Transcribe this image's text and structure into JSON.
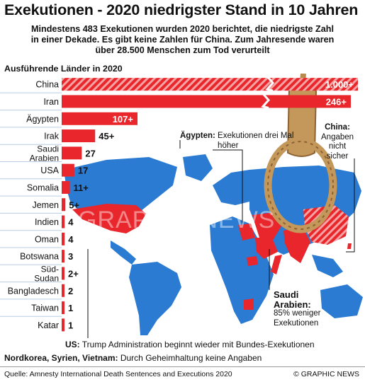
{
  "header": {
    "title": "Exekutionen - 2020 niedrigster Stand in 10 Jahren",
    "subtitle_lines": [
      "Mindestens 483 Exekutionen wurden 2020 berichtet, die niedrigste Zahl",
      "in einer Dekade. Es gibt keine Zahlen für China. Zum Jahresende waren",
      "über 28.500 Menschen zum Tod verurteilt"
    ]
  },
  "chart_data": {
    "type": "bar",
    "orientation": "horizontal",
    "title": "Ausführende Länder in 2020",
    "categories": [
      "China",
      "Iran",
      "Ägypten",
      "Irak",
      "Saudi\nArabien",
      "USA",
      "Somalia",
      "Jemen",
      "Indien",
      "Oman",
      "Botswana",
      "Süd-\nSudan",
      "Bangladesch",
      "Taiwan",
      "Katar"
    ],
    "values": [
      1000,
      246,
      107,
      45,
      27,
      17,
      11,
      5,
      4,
      4,
      3,
      2,
      2,
      1,
      1
    ],
    "data_labels": [
      "1.000+",
      "246+",
      "107+",
      "45+",
      "27",
      "17",
      "11+",
      "5+",
      "4",
      "4",
      "3",
      "2+",
      "2",
      "1",
      "1"
    ],
    "axis_break": true,
    "colors": {
      "bar": "#e8262b",
      "hatch": "#f7a7a7",
      "map_highlight": "#e8262b",
      "map_land": "#2a7bd1",
      "map_land_light": "#c4dcf1",
      "ocean": "#ffffff"
    }
  },
  "callouts": {
    "egypt": {
      "label": "Ägypten:",
      "text": "Exekutionen drei Mal höher"
    },
    "china": {
      "label": "China:",
      "text_lines": [
        "Angaben",
        "nicht",
        "sicher"
      ]
    },
    "saudi": {
      "label_lines": [
        "Saudi",
        "Arabien:"
      ],
      "text_lines": [
        "85% weniger",
        "Exekutionen"
      ]
    }
  },
  "footer": {
    "us_label": "US:",
    "us_text": "Trump Administration beginnt wieder mit Bundes-Exekutionen",
    "nk_label": "Nordkorea, Syrien, Vietnam:",
    "nk_text": "Durch Geheimhaltung keine Angaben",
    "source": "Quelle: Amnesty International Death Sentences and Executions 2020",
    "credit": "© GRAPHIC NEWS"
  },
  "watermark": "GRAPHIC NEWS"
}
